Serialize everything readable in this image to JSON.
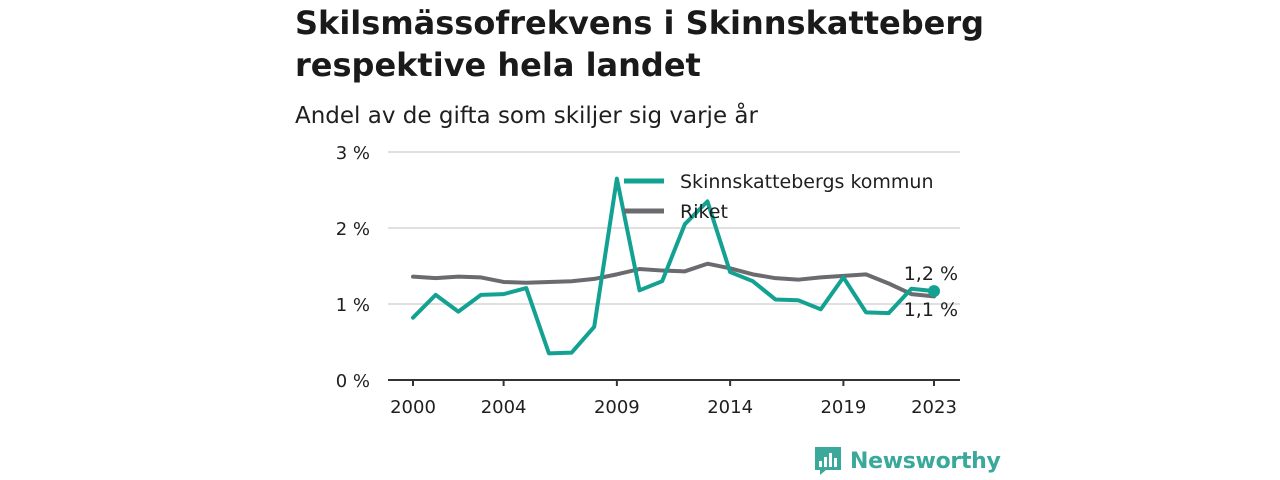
{
  "title": "Skilsmässofrekvens i Skinnskatteberg respektive hela landet",
  "subtitle": "Andel av de gifta som skiljer sig varje år",
  "brand": {
    "name": "Newsworthy",
    "icon": "newsworthy-logo-icon"
  },
  "colors": {
    "kommun": "#13a192",
    "riket": "#6b6a6f",
    "grid": "#d6d6d6",
    "axis": "#333333"
  },
  "chart_data": {
    "type": "line",
    "x": [
      2000,
      2001,
      2002,
      2003,
      2004,
      2005,
      2006,
      2007,
      2008,
      2009,
      2010,
      2011,
      2012,
      2013,
      2014,
      2015,
      2016,
      2017,
      2018,
      2019,
      2020,
      2021,
      2022,
      2023
    ],
    "x_ticks": [
      "2000",
      "2004",
      "2009",
      "2014",
      "2019",
      "2023"
    ],
    "y_ticks": [
      "0 %",
      "1 %",
      "2 %",
      "3 %"
    ],
    "ylim": [
      0,
      3
    ],
    "grid": true,
    "legend_position": "top-right",
    "series": [
      {
        "name": "Skinnskattebergs kommun",
        "color": "#13a192",
        "values": [
          0.82,
          1.12,
          0.9,
          1.12,
          1.13,
          1.21,
          0.35,
          0.36,
          0.7,
          2.65,
          1.18,
          1.3,
          2.05,
          2.35,
          1.42,
          1.3,
          1.06,
          1.05,
          0.93,
          1.35,
          0.89,
          0.88,
          1.2,
          1.17
        ]
      },
      {
        "name": "Riket",
        "color": "#6b6a6f",
        "values": [
          1.36,
          1.34,
          1.36,
          1.35,
          1.29,
          1.28,
          1.29,
          1.3,
          1.33,
          1.39,
          1.46,
          1.44,
          1.43,
          1.53,
          1.47,
          1.39,
          1.34,
          1.32,
          1.35,
          1.37,
          1.39,
          1.27,
          1.13,
          1.1
        ]
      }
    ],
    "annotations": [
      "1,2 %",
      "1,1 %"
    ]
  }
}
